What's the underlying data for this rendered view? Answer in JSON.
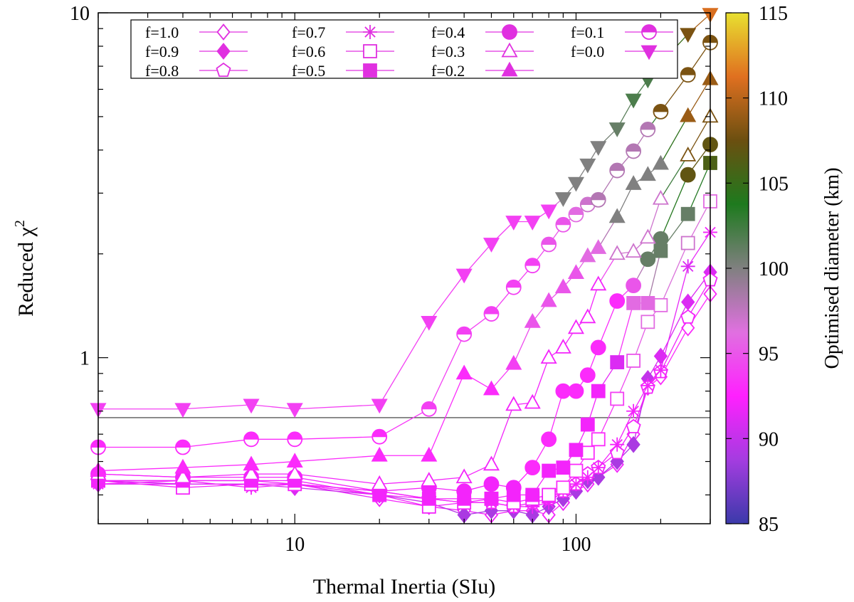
{
  "chart_data": {
    "type": "scatter",
    "xlabel": "Thermal Inertia (SIu)",
    "ylabel": "Reduced χ",
    "ylabel_sup": "2",
    "colorbar_label": "Optimised diameter (km)",
    "xscale": "log",
    "yscale": "log",
    "xlim": [
      2,
      300
    ],
    "ylim": [
      0.33,
      10
    ],
    "x_ticks": [
      {
        "value": 10,
        "label": "10"
      },
      {
        "value": 100,
        "label": "100"
      }
    ],
    "y_ticks": [
      {
        "value": 1,
        "label": "1"
      },
      {
        "value": 10,
        "label": "10"
      }
    ],
    "colorbar": {
      "range": [
        85,
        115
      ],
      "ticks": [
        "85",
        "90",
        "95",
        "100",
        "105",
        "110",
        "115"
      ],
      "stops": [
        "#3b3aaa",
        "#a43ce0",
        "#ff20ff",
        "#e070e0",
        "#808080",
        "#1e7a1e",
        "#6b4f10",
        "#e07020",
        "#e8e030"
      ]
    },
    "reference_line": 0.67,
    "grid": false,
    "legend_position": "top",
    "series": [
      {
        "name": "f=1.0",
        "marker": "diamond-open",
        "x": [
          2,
          4,
          7,
          10,
          20,
          30,
          40,
          50,
          60,
          70,
          80,
          90,
          100,
          110,
          120,
          140,
          160,
          180,
          200,
          250,
          300
        ],
        "y": [
          0.44,
          0.43,
          0.43,
          0.43,
          0.39,
          0.37,
          0.36,
          0.35,
          0.36,
          0.36,
          0.35,
          0.38,
          0.41,
          0.43,
          0.45,
          0.49,
          0.6,
          0.82,
          0.88,
          1.22,
          1.53
        ],
        "d": [
          91,
          91,
          91,
          91,
          92,
          92,
          92,
          92,
          92,
          92,
          92,
          92,
          92,
          92,
          92,
          92,
          92,
          92,
          93,
          93,
          93
        ]
      },
      {
        "name": "f=0.9",
        "marker": "diamond",
        "x": [
          2,
          4,
          7,
          10,
          20,
          30,
          40,
          50,
          60,
          70,
          80,
          90,
          100,
          110,
          120,
          140,
          160,
          180,
          200,
          250,
          300
        ],
        "y": [
          0.43,
          0.43,
          0.43,
          0.42,
          0.4,
          0.38,
          0.35,
          0.36,
          0.36,
          0.35,
          0.37,
          0.39,
          0.41,
          0.44,
          0.45,
          0.5,
          0.56,
          0.87,
          1.01,
          1.45,
          1.77
        ],
        "d": [
          91,
          91,
          91,
          91,
          90,
          90,
          89,
          89,
          89,
          89,
          89,
          89,
          89,
          89,
          89,
          89,
          89,
          90,
          91,
          91,
          91
        ]
      },
      {
        "name": "f=0.8",
        "marker": "pentagon-open",
        "x": [
          2,
          4,
          7,
          10,
          20,
          30,
          40,
          50,
          60,
          70,
          80,
          90,
          100,
          110,
          120,
          140,
          160,
          180,
          200,
          250,
          300
        ],
        "y": [
          0.44,
          0.44,
          0.44,
          0.43,
          0.41,
          0.39,
          0.38,
          0.38,
          0.37,
          0.38,
          0.39,
          0.41,
          0.43,
          0.46,
          0.48,
          0.53,
          0.63,
          0.82,
          0.91,
          1.31,
          1.68
        ],
        "d": [
          92,
          92,
          92,
          92,
          92,
          92,
          92,
          92,
          92,
          92,
          92,
          92,
          92,
          92,
          92,
          92,
          92,
          92,
          92,
          92,
          92
        ]
      },
      {
        "name": "f=0.7",
        "marker": "star",
        "x": [
          2,
          4,
          7,
          10,
          20,
          30,
          40,
          50,
          60,
          70,
          80,
          90,
          100,
          110,
          120,
          140,
          160,
          180,
          200,
          250,
          300
        ],
        "y": [
          0.43,
          0.44,
          0.42,
          0.43,
          0.41,
          0.39,
          0.38,
          0.38,
          0.37,
          0.37,
          0.38,
          0.41,
          0.43,
          0.45,
          0.48,
          0.56,
          0.7,
          0.83,
          0.92,
          1.84,
          2.31
        ],
        "d": [
          92,
          92,
          92,
          92,
          92,
          92,
          92,
          92,
          92,
          92,
          92,
          92,
          92,
          92,
          92,
          92,
          92,
          92,
          92,
          91,
          92
        ]
      },
      {
        "name": "f=0.6",
        "marker": "square-open",
        "x": [
          2,
          4,
          7,
          10,
          20,
          30,
          40,
          50,
          60,
          70,
          80,
          90,
          100,
          110,
          120,
          140,
          160,
          180,
          200,
          250,
          300
        ],
        "y": [
          0.44,
          0.42,
          0.43,
          0.43,
          0.4,
          0.37,
          0.38,
          0.39,
          0.38,
          0.39,
          0.4,
          0.42,
          0.47,
          0.53,
          0.58,
          0.76,
          0.98,
          1.27,
          1.42,
          2.15,
          2.84
        ],
        "d": [
          92,
          92,
          92,
          92,
          92,
          92,
          92,
          92,
          92,
          92,
          92,
          93,
          93,
          93,
          93,
          94,
          95,
          96,
          96,
          97,
          96
        ]
      },
      {
        "name": "f=0.5",
        "marker": "square",
        "x": [
          2,
          4,
          7,
          10,
          20,
          30,
          40,
          50,
          60,
          70,
          80,
          90,
          100,
          110,
          120,
          140,
          160,
          180,
          200,
          250,
          300
        ],
        "y": [
          0.44,
          0.44,
          0.44,
          0.44,
          0.4,
          0.39,
          0.39,
          0.39,
          0.4,
          0.4,
          0.47,
          0.48,
          0.54,
          0.64,
          0.8,
          0.97,
          1.44,
          1.44,
          2.04,
          2.61,
          3.67
        ],
        "d": [
          92,
          92,
          92,
          92,
          92,
          92,
          92,
          92,
          92,
          92,
          92,
          92,
          92,
          92,
          92,
          91,
          96,
          96,
          101,
          101,
          106
        ]
      },
      {
        "name": "f=0.4",
        "marker": "circle",
        "x": [
          2,
          4,
          7,
          10,
          20,
          30,
          40,
          50,
          60,
          70,
          80,
          90,
          100,
          110,
          120,
          140,
          160,
          180,
          200,
          250,
          300
        ],
        "y": [
          0.46,
          0.45,
          0.45,
          0.45,
          0.41,
          0.42,
          0.41,
          0.43,
          0.42,
          0.48,
          0.58,
          0.8,
          0.8,
          0.89,
          1.07,
          1.46,
          1.62,
          1.93,
          2.21,
          3.39,
          4.15
        ],
        "d": [
          92,
          92,
          92,
          92,
          92,
          92,
          92,
          92,
          92,
          93,
          93,
          93,
          93,
          93,
          93,
          93,
          95,
          101,
          101,
          107,
          107
        ]
      },
      {
        "name": "f=0.3",
        "marker": "triangle-open",
        "x": [
          2,
          4,
          7,
          10,
          20,
          30,
          40,
          50,
          60,
          70,
          80,
          90,
          100,
          110,
          120,
          140,
          160,
          180,
          200,
          250,
          300
        ],
        "y": [
          0.46,
          0.45,
          0.46,
          0.46,
          0.43,
          0.44,
          0.45,
          0.49,
          0.73,
          0.74,
          1.0,
          1.07,
          1.22,
          1.31,
          1.63,
          2.0,
          2.03,
          2.23,
          2.89,
          3.86,
          5.0
        ],
        "d": [
          92,
          92,
          92,
          92,
          92,
          92,
          92,
          92,
          92,
          92,
          92,
          92,
          92,
          92,
          92,
          97,
          97,
          97,
          97,
          108,
          108
        ]
      },
      {
        "name": "f=0.2",
        "marker": "triangle",
        "x": [
          2,
          4,
          7,
          10,
          20,
          30,
          40,
          50,
          60,
          70,
          80,
          90,
          100,
          110,
          120,
          140,
          160,
          180,
          200,
          250,
          300
        ],
        "y": [
          0.47,
          0.48,
          0.49,
          0.5,
          0.52,
          0.52,
          0.9,
          0.81,
          0.96,
          1.27,
          1.46,
          1.6,
          1.76,
          1.97,
          2.08,
          2.56,
          3.19,
          3.39,
          3.65,
          5.02,
          6.42
        ],
        "d": [
          93,
          93,
          93,
          93,
          93,
          93,
          93,
          93,
          94,
          95,
          95,
          95,
          95,
          96,
          96,
          100,
          100,
          100,
          100,
          109,
          109
        ]
      },
      {
        "name": "f=0.1",
        "marker": "half-circle",
        "x": [
          2,
          4,
          7,
          10,
          20,
          30,
          40,
          50,
          60,
          70,
          80,
          90,
          100,
          110,
          120,
          140,
          160,
          180,
          200,
          250,
          300
        ],
        "y": [
          0.55,
          0.55,
          0.58,
          0.58,
          0.59,
          0.71,
          1.17,
          1.34,
          1.6,
          1.85,
          2.13,
          2.43,
          2.6,
          2.78,
          2.87,
          3.49,
          3.97,
          4.59,
          5.17,
          6.61,
          8.2
        ],
        "d": [
          93,
          93,
          93,
          93,
          93,
          94,
          94,
          94,
          94,
          94,
          95,
          95,
          96,
          97,
          98,
          98,
          98,
          98,
          108,
          108,
          108
        ]
      },
      {
        "name": "f=0.0",
        "marker": "triangle-down",
        "x": [
          2,
          4,
          7,
          10,
          20,
          30,
          40,
          50,
          60,
          70,
          80,
          90,
          100,
          110,
          120,
          140,
          160,
          180,
          200,
          250,
          300
        ],
        "y": [
          0.71,
          0.71,
          0.73,
          0.71,
          0.73,
          1.27,
          1.74,
          2.14,
          2.48,
          2.48,
          2.67,
          2.9,
          3.21,
          3.63,
          4.08,
          4.62,
          5.6,
          6.4,
          7.13,
          8.68,
          9.92
        ],
        "d": [
          94,
          94,
          94,
          94,
          94,
          94,
          94,
          94,
          94,
          94,
          94,
          100,
          100,
          100,
          100,
          101,
          102,
          102,
          102,
          108,
          111
        ]
      }
    ]
  }
}
